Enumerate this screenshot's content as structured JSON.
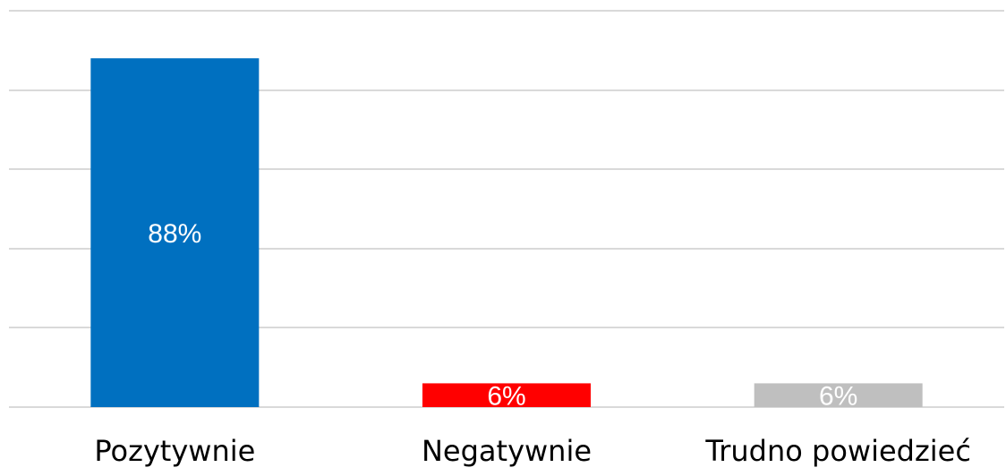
{
  "chart_data": {
    "type": "bar",
    "categories": [
      "Pozytywnie",
      "Negatywnie",
      "Trudno powiedzieć"
    ],
    "values": [
      88,
      6,
      6
    ],
    "value_labels": [
      "88%",
      "6%",
      "6%"
    ],
    "colors": [
      "#0070C0",
      "#FF0000",
      "#BFBFBF"
    ],
    "ylim": [
      0,
      100
    ],
    "grid": true,
    "legend": "none"
  }
}
